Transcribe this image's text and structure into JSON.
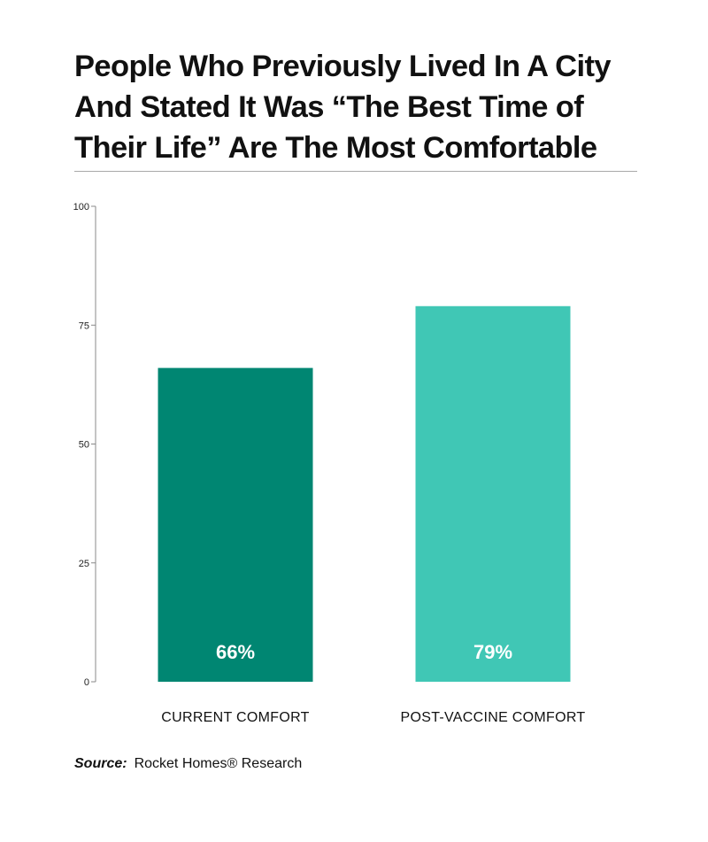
{
  "chart_data": {
    "type": "bar",
    "title": "People Who Previously Lived In A City\nAnd Stated It Was “The Best Time of\nTheir Life” Are The Most Comfortable",
    "categories": [
      "CURRENT COMFORT",
      "POST-VACCINE COMFORT"
    ],
    "values": [
      66,
      79
    ],
    "value_labels": [
      "66%",
      "79%"
    ],
    "colors": [
      "#008672",
      "#40c7b5"
    ],
    "ylim": [
      0,
      100
    ],
    "yticks": [
      0,
      25,
      50,
      75,
      100
    ],
    "ytick_labels": [
      "0",
      "25",
      "50",
      "75",
      "100"
    ],
    "xlabel": "",
    "ylabel": "",
    "grid": false,
    "legend": "none"
  },
  "source": {
    "label": "Source:",
    "text": "Rocket Homes® Research"
  }
}
